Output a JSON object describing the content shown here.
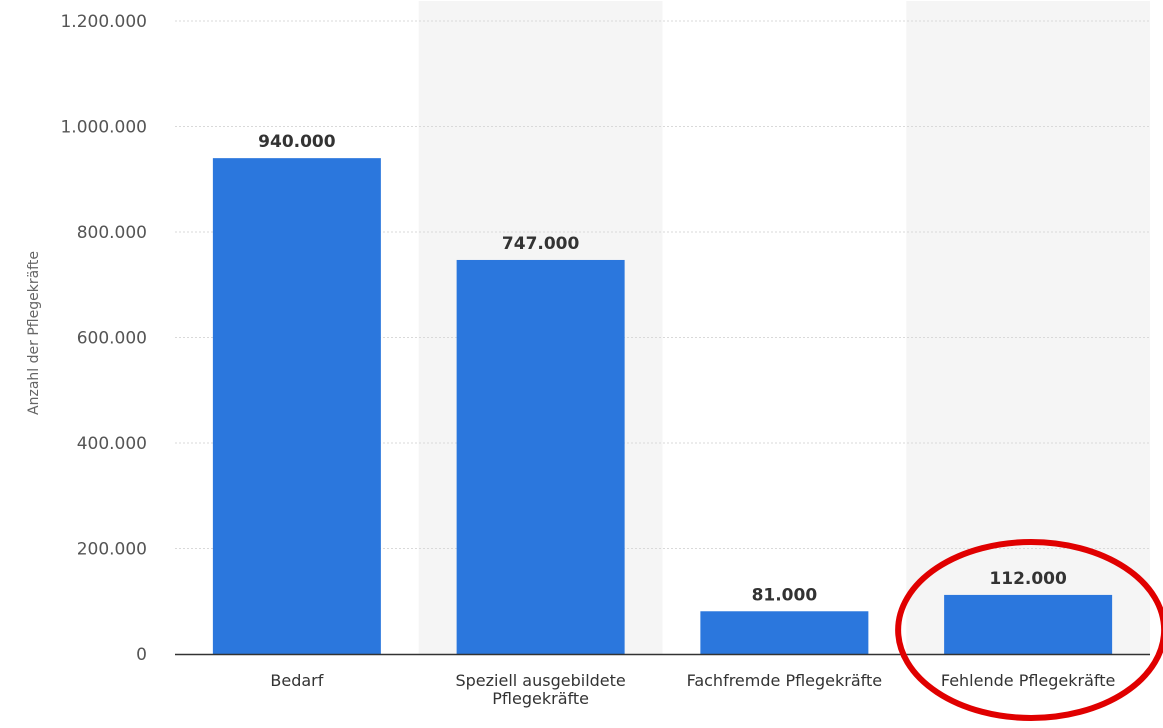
{
  "chart_data": {
    "type": "bar",
    "title": "",
    "xlabel": "",
    "ylabel": "Anzahl der Pflegekräfte",
    "ylim": [
      0,
      1200000
    ],
    "yticks": [
      0,
      200000,
      400000,
      600000,
      800000,
      1000000,
      1200000
    ],
    "ytick_labels": [
      "0",
      "200.000",
      "400.000",
      "600.000",
      "800.000",
      "1.000.000",
      "1.200.000"
    ],
    "categories": [
      [
        "Bedarf"
      ],
      [
        "Speziell ausgebildete",
        "Pflegekräfte"
      ],
      [
        "Fachfremde Pflegekräfte"
      ],
      [
        "Fehlende Pflegekräfte"
      ]
    ],
    "values": [
      940000,
      747000,
      81000,
      112000
    ],
    "value_labels": [
      "940.000",
      "747.000",
      "81.000",
      "112.000"
    ],
    "grid": true,
    "legend": "none",
    "highlighted_category": 3,
    "colors": {
      "bar": "#2b77dd",
      "band": "#f5f5f5",
      "grid": "#d9d9d9",
      "axis": "#333333",
      "highlight": "#e00000"
    }
  }
}
